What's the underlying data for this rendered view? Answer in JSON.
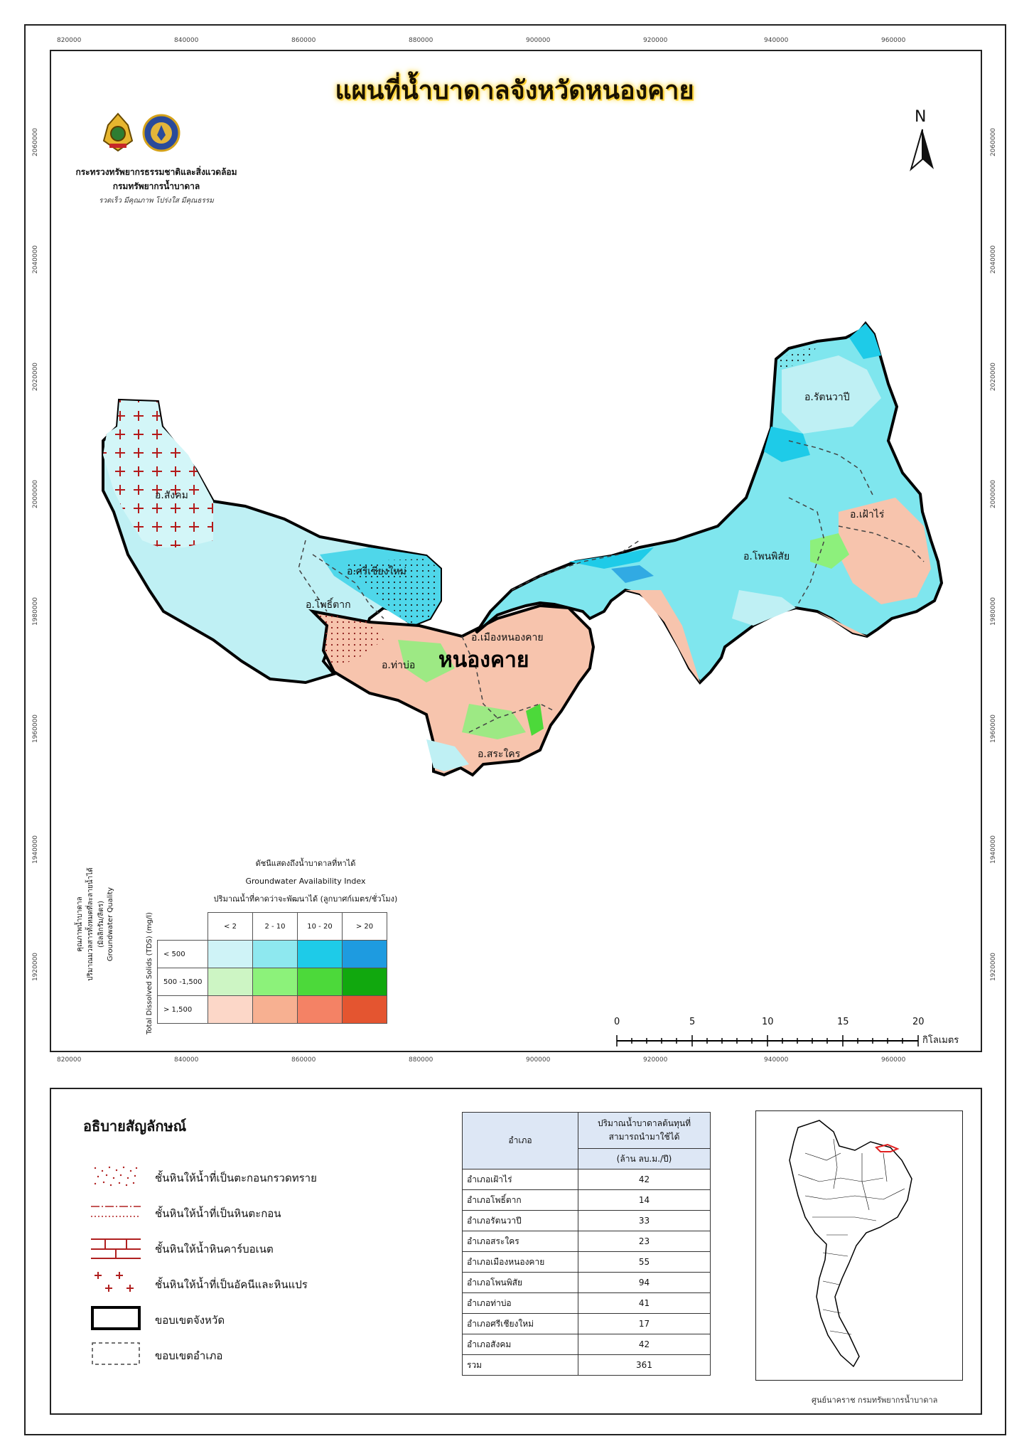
{
  "title": "แผนที่น้ำบาดาลจังหวัดหนองคาย",
  "ministry_line1": "กระทรวงทรัพยากรธรรมชาติและสิ่งแวดล้อม",
  "ministry_line2": "กรมทรัพยากรน้ำบาดาล",
  "slogan": "รวดเร็ว มีคุณภาพ โปร่งใส มีคุณธรรม",
  "north_label": "N",
  "grid": {
    "x_ticks": [
      "820000",
      "840000",
      "860000",
      "880000",
      "900000",
      "920000",
      "940000",
      "960000"
    ],
    "y_ticks": [
      "2060000",
      "2040000",
      "2020000",
      "2000000",
      "1980000",
      "1960000",
      "1940000",
      "1920000"
    ]
  },
  "map": {
    "province_label": "หนองคาย",
    "districts": [
      "อ.สังคม",
      "อ.ศรีเชียงใหม่",
      "อ.โพธิ์ตาก",
      "อ.ท่าบ่อ",
      "อ.เมืองหนองคาย",
      "อ.สระใคร",
      "อ.โพนพิสัย",
      "อ.เฝ้าไร่",
      "อ.รัตนวาปี"
    ]
  },
  "availability_index": {
    "title_th": "ดัชนีแสดงถึงน้ำบาดาลที่หาได้",
    "title_en": "Groundwater Availability Index",
    "subtitle": "ปริมาณน้ำที่คาดว่าจะพัฒนาได้ (ลูกบาศก์เมตร/ชั่วโมง)",
    "col_heads": [
      "< 2",
      "2 - 10",
      "10 - 20",
      "> 20"
    ],
    "row_heads": [
      "< 500",
      "500 -1,500",
      "> 1,500"
    ],
    "colors": [
      [
        "#cff3f7",
        "#8ee8ef",
        "#1ecbe8",
        "#1e9be0"
      ],
      [
        "#cdf5c4",
        "#8cf27a",
        "#4cd93a",
        "#11a80e"
      ],
      [
        "#fcd7c8",
        "#f7b091",
        "#f48265",
        "#e45530"
      ]
    ],
    "quality_label_1": "คุณภาพน้ำบาดาล",
    "quality_label_2": "ปริมาณมวลสารทั้งหมดที่ละลายน้ำได้",
    "quality_label_3": "(มิลลิกรัม/ลิตร)",
    "quality_label_en": "Groundwater Quality",
    "tds_label": "Total Dissolved Solids (TDS) (mg/l)"
  },
  "scale_bar": {
    "ticks": [
      "0",
      "5",
      "10",
      "15",
      "20"
    ],
    "unit": "กิโลเมตร"
  },
  "legend": {
    "title": "อธิบายสัญลักษณ์",
    "items": [
      "ชั้นหินให้น้ำที่เป็นตะกอนกรวดทราย",
      "ชั้นหินให้น้ำที่เป็นหินตะกอน",
      "ชั้นหินให้น้ำหินคาร์บอเนต",
      "ชั้นหินให้น้ำที่เป็นอัคนีและหินแปร",
      "ขอบเขตจังหวัด",
      "ขอบเขตอำเภอ"
    ]
  },
  "usage_table": {
    "col1": "อำเภอ",
    "col2_line1": "ปริมาณน้ำบาดาลต้นทุนที่",
    "col2_line2": "สามารถนำมาใช้ได้",
    "unit": "(ล้าน ลบ.ม./ปี)",
    "rows": [
      {
        "district": "อำเภอเฝ้าไร่",
        "value": "42"
      },
      {
        "district": "อำเภอโพธิ์ตาก",
        "value": "14"
      },
      {
        "district": "อำเภอรัตนวาปี",
        "value": "33"
      },
      {
        "district": "อำเภอสระใคร",
        "value": "23"
      },
      {
        "district": "อำเภอเมืองหนองคาย",
        "value": "55"
      },
      {
        "district": "อำเภอโพนพิสัย",
        "value": "94"
      },
      {
        "district": "อำเภอท่าบ่อ",
        "value": "41"
      },
      {
        "district": "อำเภอศรีเชียงใหม่",
        "value": "17"
      },
      {
        "district": "อำเภอสังคม",
        "value": "42"
      }
    ],
    "total_label": "รวม",
    "total_value": "361"
  },
  "credit": "ศูนย์นาคราช กรมทรัพยากรน้ำบาดาล"
}
